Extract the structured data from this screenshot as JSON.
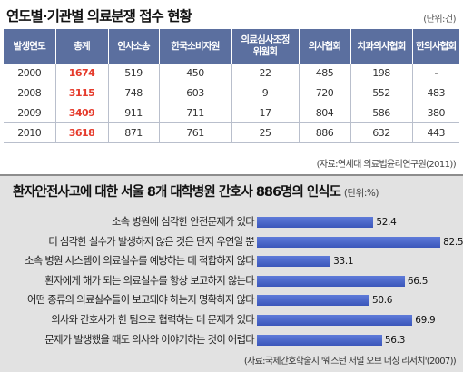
{
  "table": {
    "title": "연도별·기관별 의료분쟁 접수 현황",
    "unit": "(단위:건)",
    "headers": [
      "발생연도",
      "총계",
      "인사소송",
      "한국소비자원",
      "의료심사조정\n위원회",
      "의사협회",
      "치과의사협회",
      "한의사협회"
    ],
    "rows": [
      [
        "2000",
        "1674",
        "519",
        "450",
        "22",
        "485",
        "198",
        "-"
      ],
      [
        "2008",
        "3115",
        "748",
        "603",
        "9",
        "720",
        "552",
        "483"
      ],
      [
        "2009",
        "3409",
        "911",
        "711",
        "17",
        "804",
        "586",
        "380"
      ],
      [
        "2010",
        "3618",
        "871",
        "761",
        "25",
        "886",
        "632",
        "443"
      ]
    ],
    "source": "(자료:연세대 의료법윤리연구원(2011))"
  },
  "chart_data": {
    "type": "bar",
    "orientation": "horizontal",
    "title": "환자안전사고에 대한 서울 8개 대학병원 간호사 886명의 인식도",
    "unit": "(단위:%)",
    "categories": [
      "소속 병원에 심각한 안전문제가 있다",
      "더 심각한 실수가 발생하지 않은 것은 단지 우연일 뿐",
      "소속 병원 시스템이 의료실수를 예방하는 데 적합하지 않다",
      "환자에게 해가 되는 의료실수를 항상 보고하지 않는다",
      "어떤 종류의 의료실수들이 보고돼야 하는지 명확하지 않다",
      "의사와 간호사가 한 팀으로 협력하는 데 문제가 있다",
      "문제가 발생했을 때도 의사와 이야기하는 것이 어렵다"
    ],
    "values": [
      52.4,
      82.5,
      33.1,
      66.5,
      50.6,
      69.9,
      56.3
    ],
    "value_labels": [
      "52.4",
      "82.5",
      "33.1",
      "66.5",
      "50.6",
      "69.9",
      "56.3"
    ],
    "xlim": [
      0,
      100
    ],
    "bar_color": "#4560c4",
    "source": "(자료:국제간호학술지 '웨스턴 저널 오브 너싱 리서치'(2007))"
  },
  "colors": {
    "header_bg": "#5b6f9f",
    "total_red": "#e53b2c",
    "panel_bg": "#e2e2e2"
  }
}
